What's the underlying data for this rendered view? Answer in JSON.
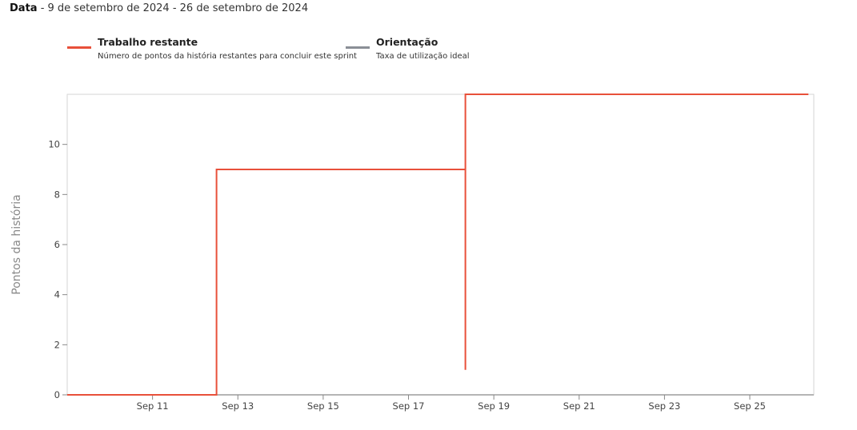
{
  "header": {
    "label": "Data",
    "range": " - 9 de setembro de 2024 - 26 de setembro de 2024"
  },
  "legend": [
    {
      "title": "Trabalho restante",
      "desc": "Número de pontos da história restantes para concluir este sprint",
      "color": "#e8503a"
    },
    {
      "title": "Orientação",
      "desc": "Taxa de utilização ideal",
      "color": "#8a8f96"
    }
  ],
  "chart_data": {
    "type": "line",
    "ylabel": "Pontos da história",
    "xlabel": "",
    "title": "",
    "ylim": [
      0,
      12
    ],
    "yticks": [
      0,
      2,
      4,
      6,
      8,
      10
    ],
    "xlim": [
      "2024-09-09",
      "2024-09-26"
    ],
    "xticks": [
      {
        "date": "2024-09-11",
        "label": "Sep 11"
      },
      {
        "date": "2024-09-13",
        "label": "Sep 13"
      },
      {
        "date": "2024-09-15",
        "label": "Sep 15"
      },
      {
        "date": "2024-09-17",
        "label": "Sep 17"
      },
      {
        "date": "2024-09-19",
        "label": "Sep 19"
      },
      {
        "date": "2024-09-21",
        "label": "Sep 21"
      },
      {
        "date": "2024-09-23",
        "label": "Sep 23"
      },
      {
        "date": "2024-09-25",
        "label": "Sep 25"
      }
    ],
    "series": [
      {
        "name": "Trabalho restante",
        "color": "#e8503a",
        "points": [
          {
            "x": "2024-09-09T00:00",
            "y": 0
          },
          {
            "x": "2024-09-12T12:00",
            "y": 0
          },
          {
            "x": "2024-09-12T12:00",
            "y": 9
          },
          {
            "x": "2024-09-18T08:00",
            "y": 9
          },
          {
            "x": "2024-09-18T08:00",
            "y": 1
          },
          {
            "x": "2024-09-18T08:00",
            "y": 12
          },
          {
            "x": "2024-09-26T09:00",
            "y": 12
          }
        ]
      }
    ]
  }
}
